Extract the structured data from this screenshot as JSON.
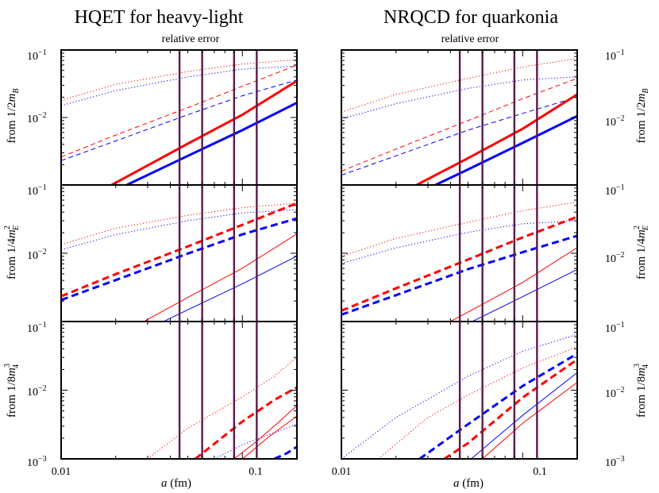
{
  "titles": {
    "left": "HQET for heavy-light",
    "right": "NRQCD for quarkonia",
    "left_subtitle": "relative error",
    "right_subtitle": "relative error"
  },
  "row_labels": {
    "row1": {
      "prefix": "from 1/2",
      "base": "m",
      "sub": "B",
      "sup": ""
    },
    "row2": {
      "prefix": "from 1/4",
      "base": "m",
      "sub": "E",
      "sup": "2"
    },
    "row3": {
      "prefix": "from 1/8",
      "base": "m",
      "sub": "4",
      "sup": "3"
    }
  },
  "xaxis": {
    "label_var": "a",
    "label_unit": " (fm)",
    "tick_labels": [
      "0.01",
      "0.1"
    ],
    "range": [
      0.01,
      0.2
    ],
    "scale": "log"
  },
  "ytick_labels": {
    "top": {
      "base": "10",
      "exp": "−1"
    },
    "mid": {
      "base": "10",
      "exp": "−2"
    },
    "bottom_row3": {
      "base": "10",
      "exp": "−3"
    }
  },
  "chart_data": [
    {
      "type": "line",
      "panel": "HQET rows 1-2 (shared axis)",
      "yscale": "log",
      "ylim": [
        0.001,
        0.1
      ],
      "vlines": [
        0.045,
        0.06,
        0.09,
        0.12
      ],
      "series": [
        {
          "color": "#ff0000",
          "style": "dotted",
          "width": 1,
          "x": [
            0.01,
            0.02,
            0.05,
            0.1,
            0.2
          ],
          "y": [
            0.018,
            0.031,
            0.048,
            0.062,
            0.072
          ]
        },
        {
          "color": "#0000ff",
          "style": "dotted",
          "width": 1,
          "x": [
            0.01,
            0.02,
            0.05,
            0.1,
            0.2
          ],
          "y": [
            0.015,
            0.025,
            0.04,
            0.052,
            0.058
          ]
        },
        {
          "color": "#ff0000",
          "style": "dashed",
          "width": 1,
          "x": [
            0.01,
            0.02,
            0.05,
            0.1,
            0.2
          ],
          "y": [
            0.0026,
            0.0055,
            0.014,
            0.029,
            0.06
          ]
        },
        {
          "color": "#0000ff",
          "style": "dashed",
          "width": 1,
          "x": [
            0.01,
            0.02,
            0.05,
            0.1,
            0.2
          ],
          "y": [
            0.0023,
            0.0045,
            0.011,
            0.021,
            0.036
          ]
        },
        {
          "color": "#ff0000",
          "style": "solid",
          "width": 3,
          "x": [
            0.019,
            0.05,
            0.1,
            0.2
          ],
          "y": [
            0.001,
            0.0041,
            0.011,
            0.035
          ]
        },
        {
          "color": "#0000ff",
          "style": "solid",
          "width": 3,
          "x": [
            0.023,
            0.05,
            0.1,
            0.2
          ],
          "y": [
            0.001,
            0.0027,
            0.0065,
            0.0165
          ]
        }
      ]
    },
    {
      "type": "line",
      "panel": "NRQCD rows 1-2 (shared axis)",
      "yscale": "log",
      "ylim": [
        0.001,
        0.1
      ],
      "vlines": [
        0.045,
        0.06,
        0.09,
        0.12
      ],
      "series": [
        {
          "color": "#ff0000",
          "style": "dotted",
          "width": 1,
          "x": [
            0.01,
            0.02,
            0.05,
            0.1,
            0.2
          ],
          "y": [
            0.012,
            0.022,
            0.038,
            0.056,
            0.075
          ]
        },
        {
          "color": "#0000ff",
          "style": "dotted",
          "width": 1,
          "x": [
            0.01,
            0.02,
            0.05,
            0.1,
            0.2
          ],
          "y": [
            0.0095,
            0.016,
            0.027,
            0.036,
            0.04
          ]
        },
        {
          "color": "#ff0000",
          "style": "dashed",
          "width": 1,
          "x": [
            0.01,
            0.02,
            0.05,
            0.1,
            0.2
          ],
          "y": [
            0.0016,
            0.0034,
            0.009,
            0.019,
            0.038
          ]
        },
        {
          "color": "#0000ff",
          "style": "dashed",
          "width": 1,
          "x": [
            0.01,
            0.02,
            0.05,
            0.1,
            0.2
          ],
          "y": [
            0.0014,
            0.0027,
            0.0065,
            0.0115,
            0.02
          ]
        },
        {
          "color": "#ff0000",
          "style": "solid",
          "width": 3,
          "x": [
            0.026,
            0.05,
            0.1,
            0.2
          ],
          "y": [
            0.001,
            0.0025,
            0.0068,
            0.022
          ]
        },
        {
          "color": "#0000ff",
          "style": "solid",
          "width": 3,
          "x": [
            0.033,
            0.05,
            0.1,
            0.2
          ],
          "y": [
            0.001,
            0.0017,
            0.0042,
            0.0105
          ]
        }
      ]
    },
    {
      "type": "line",
      "panel": "HQET row 3",
      "yscale": "log",
      "ylim": [
        0.001,
        0.1
      ],
      "vlines": [
        0.045,
        0.06,
        0.09,
        0.12
      ],
      "series": [
        {
          "color": "#ff0000",
          "style": "dotted",
          "width": 1,
          "x": [
            0.03,
            0.05,
            0.1,
            0.15,
            0.2
          ],
          "y": [
            0.001,
            0.0028,
            0.008,
            0.016,
            0.03
          ]
        },
        {
          "color": "#0000ff",
          "style": "dotted",
          "width": 1,
          "x": [
            0.07,
            0.1,
            0.15,
            0.2
          ],
          "y": [
            0.001,
            0.0016,
            0.0024,
            0.0032
          ]
        },
        {
          "color": "#ff0000",
          "style": "dashed",
          "width": 3,
          "x": [
            0.055,
            0.1,
            0.15,
            0.2
          ],
          "y": [
            0.001,
            0.0035,
            0.0072,
            0.011
          ]
        },
        {
          "color": "#0000ff",
          "style": "dashed",
          "width": 3,
          "x": [
            0.15,
            0.175,
            0.2
          ],
          "y": [
            0.001,
            0.0012,
            0.0015
          ]
        },
        {
          "color": "#ff0000",
          "style": "solid",
          "width": 1,
          "x": [
            0.09,
            0.12,
            0.16,
            0.2
          ],
          "y": [
            0.001,
            0.0018,
            0.0035,
            0.006
          ]
        },
        {
          "color": "#ff0000",
          "style": "solid",
          "width": 1,
          "x": [
            0.1,
            0.14,
            0.2
          ],
          "y": [
            0.001,
            0.0021,
            0.0042
          ]
        }
      ]
    },
    {
      "type": "line",
      "panel": "NRQCD row 3",
      "yscale": "log",
      "ylim": [
        0.001,
        0.1
      ],
      "vlines": [
        0.045,
        0.06,
        0.09,
        0.12
      ],
      "series": [
        {
          "color": "#0000ff",
          "style": "dotted",
          "width": 1,
          "x": [
            0.01,
            0.02,
            0.05,
            0.1,
            0.2
          ],
          "y": [
            0.001,
            0.004,
            0.016,
            0.037,
            0.065
          ]
        },
        {
          "color": "#ff0000",
          "style": "dotted",
          "width": 1,
          "x": [
            0.016,
            0.03,
            0.05,
            0.1,
            0.2
          ],
          "y": [
            0.001,
            0.004,
            0.0085,
            0.021,
            0.043
          ]
        },
        {
          "color": "#0000ff",
          "style": "dashed",
          "width": 3,
          "x": [
            0.027,
            0.05,
            0.1,
            0.2
          ],
          "y": [
            0.001,
            0.0032,
            0.0115,
            0.034
          ]
        },
        {
          "color": "#ff0000",
          "style": "dashed",
          "width": 3,
          "x": [
            0.037,
            0.05,
            0.1,
            0.2
          ],
          "y": [
            0.001,
            0.0017,
            0.0078,
            0.028
          ]
        },
        {
          "color": "#0000ff",
          "style": "solid",
          "width": 1,
          "x": [
            0.052,
            0.1,
            0.2
          ],
          "y": [
            0.001,
            0.0043,
            0.018
          ]
        },
        {
          "color": "#ff0000",
          "style": "solid",
          "width": 1,
          "x": [
            0.06,
            0.1,
            0.2
          ],
          "y": [
            0.001,
            0.0033,
            0.013
          ]
        }
      ]
    }
  ],
  "colors": {
    "red": "#ff0000",
    "blue": "#0000ff",
    "vline": "#5a1a4a"
  }
}
